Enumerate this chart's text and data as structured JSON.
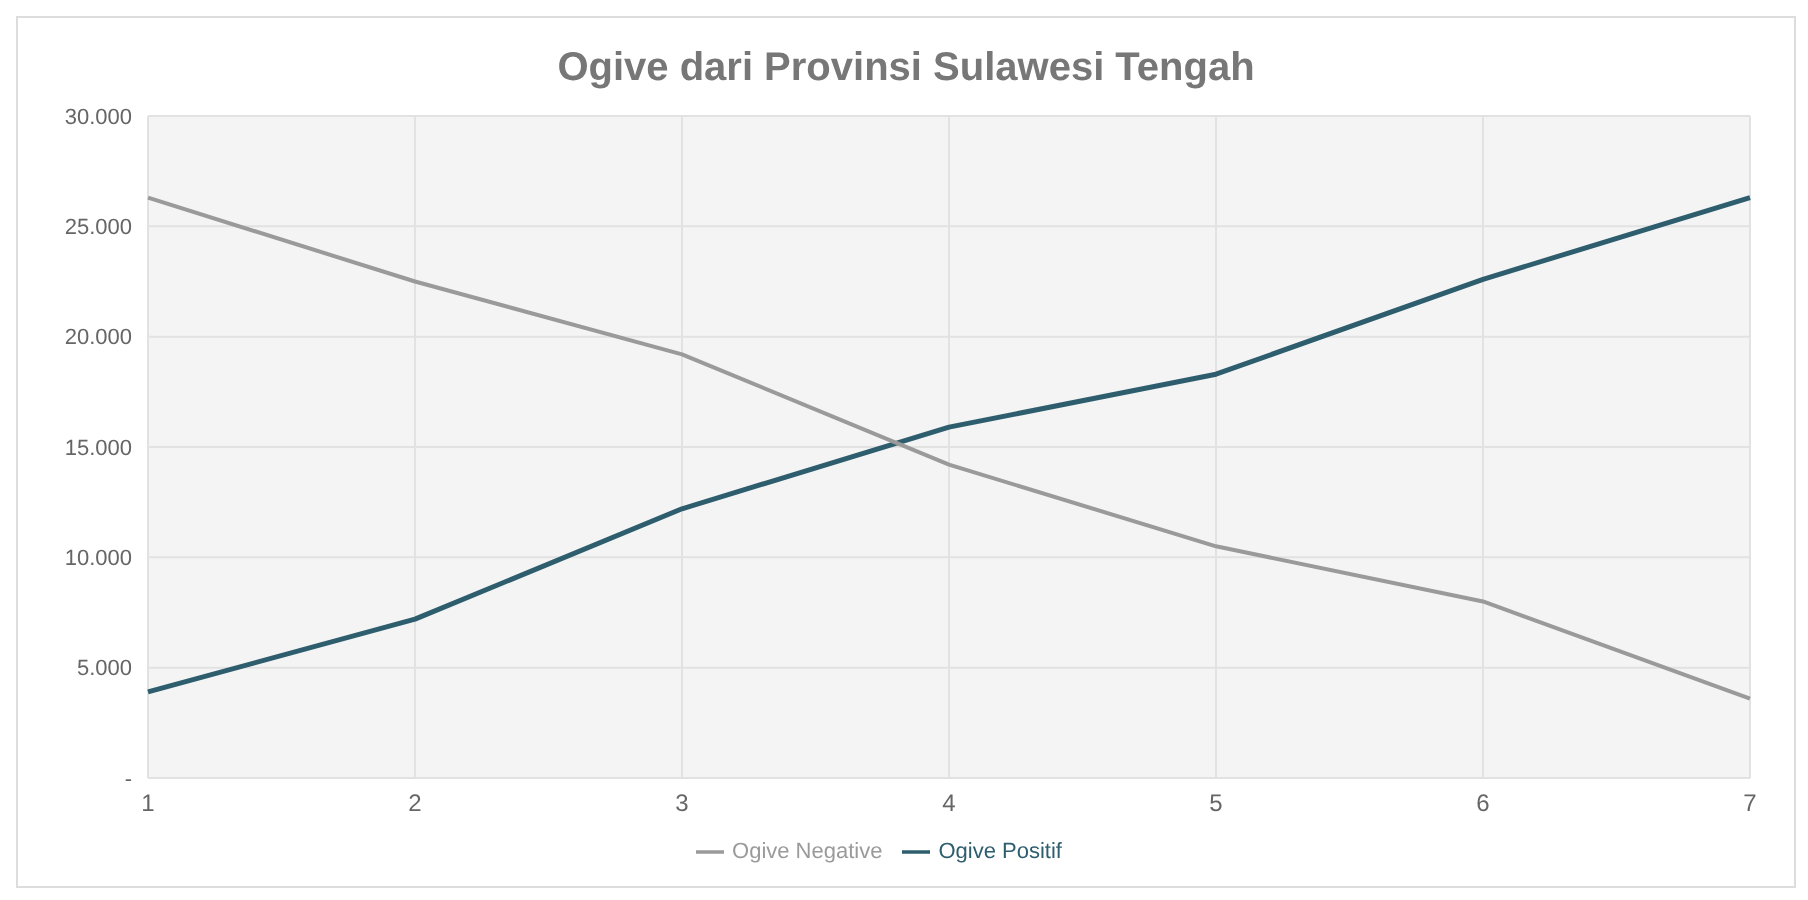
{
  "chart_data": {
    "type": "line",
    "title": "Ogive dari Provinsi Sulawesi Tengah",
    "categories": [
      "1",
      "2",
      "3",
      "4",
      "5",
      "6",
      "7"
    ],
    "series": [
      {
        "name": "Ogive Positif",
        "color": "#2e5e6e",
        "values": [
          3900,
          7200,
          12200,
          15900,
          18300,
          22600,
          26300
        ]
      },
      {
        "name": "Ogive Negative",
        "color": "#9a9a9a",
        "values": [
          26300,
          22500,
          19200,
          14200,
          10500,
          8000,
          3600
        ]
      }
    ],
    "ylim": [
      0,
      30000
    ],
    "yticks": [
      {
        "value": 0,
        "label": "-"
      },
      {
        "value": 5000,
        "label": "5.000"
      },
      {
        "value": 10000,
        "label": "10.000"
      },
      {
        "value": 15000,
        "label": "15.000"
      },
      {
        "value": 20000,
        "label": "20.000"
      },
      {
        "value": 25000,
        "label": "25.000"
      },
      {
        "value": 30000,
        "label": "30.000"
      }
    ],
    "grid": true,
    "legend": "bottom",
    "marker": "none",
    "line_style": "solid"
  }
}
